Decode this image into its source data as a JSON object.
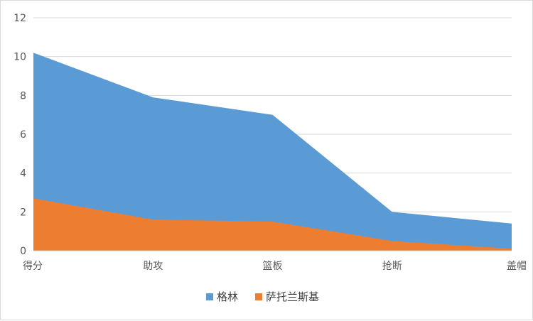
{
  "chart_data": {
    "type": "area",
    "stacked": false,
    "categories": [
      "得分",
      "助攻",
      "篮板",
      "抢断",
      "盖帽"
    ],
    "series": [
      {
        "name": "格林",
        "color": "#5b9bd5",
        "values": [
          10.2,
          7.9,
          7.0,
          2.0,
          1.4
        ]
      },
      {
        "name": "萨托兰斯基",
        "color": "#ed7d31",
        "values": [
          2.7,
          1.6,
          1.5,
          0.5,
          0.1
        ]
      }
    ],
    "yticks": [
      0,
      2,
      4,
      6,
      8,
      10,
      12
    ],
    "ylim": [
      0,
      12
    ],
    "grid": true,
    "legend_position": "bottom"
  }
}
